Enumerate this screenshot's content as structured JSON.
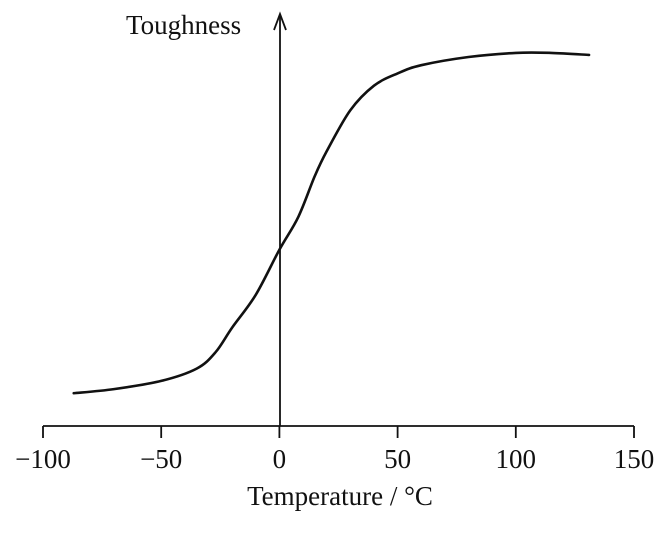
{
  "chart_data": {
    "type": "line",
    "title": "",
    "xlabel": "Temperature / °C",
    "ylabel": "Toughness",
    "xlim": [
      -100,
      150
    ],
    "ylim": [
      0,
      100
    ],
    "xticks": [
      -100,
      -50,
      0,
      50,
      100,
      150
    ],
    "xtick_labels": [
      "−100",
      "−50",
      "0",
      "50",
      "100",
      "150"
    ],
    "grid": false,
    "legend": "none",
    "series": [
      {
        "x": [
          -87,
          -70,
          -50,
          -35,
          -27,
          -20,
          -10,
          0,
          8,
          15,
          20,
          30,
          40,
          50,
          60,
          80,
          100,
          115,
          131
        ],
        "y": [
          8,
          9,
          11,
          14,
          18,
          24,
          32,
          43,
          51,
          61,
          67,
          77,
          83,
          86,
          88,
          90,
          91,
          91,
          90.5
        ]
      }
    ],
    "colors": {
      "line": "#111111",
      "axis": "#111111"
    }
  }
}
